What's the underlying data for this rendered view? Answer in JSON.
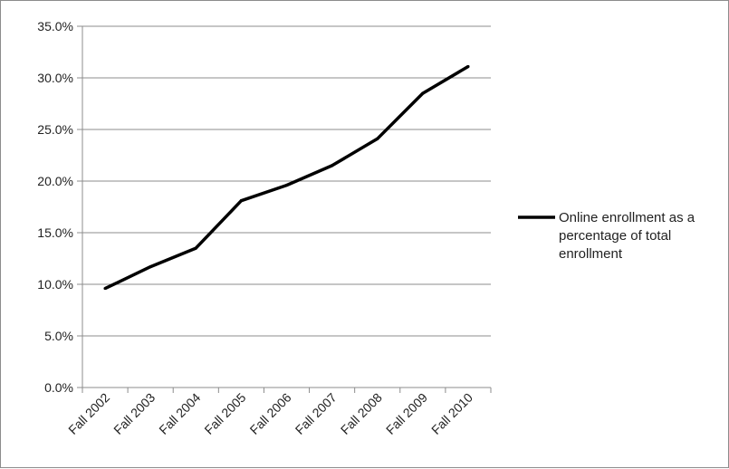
{
  "chart_data": {
    "type": "line",
    "categories": [
      "Fall 2002",
      "Fall 2003",
      "Fall 2004",
      "Fall 2005",
      "Fall 2006",
      "Fall 2007",
      "Fall 2008",
      "Fall 2009",
      "Fall 2010"
    ],
    "series": [
      {
        "name": "Online enrollment as a percentage of total enrollment",
        "values": [
          9.6,
          11.7,
          13.5,
          18.1,
          19.6,
          21.5,
          24.1,
          28.5,
          31.1
        ],
        "color": "#000000"
      }
    ],
    "y_ticks": [
      "0.0%",
      "5.0%",
      "10.0%",
      "15.0%",
      "20.0%",
      "25.0%",
      "30.0%",
      "35.0%"
    ],
    "ylim": [
      0,
      35
    ],
    "grid": true,
    "legend_position": "right",
    "legend_lines": [
      "Online enrollment as a",
      "percentage of total",
      "enrollment"
    ],
    "gridline_color": "#8c8c8c"
  }
}
